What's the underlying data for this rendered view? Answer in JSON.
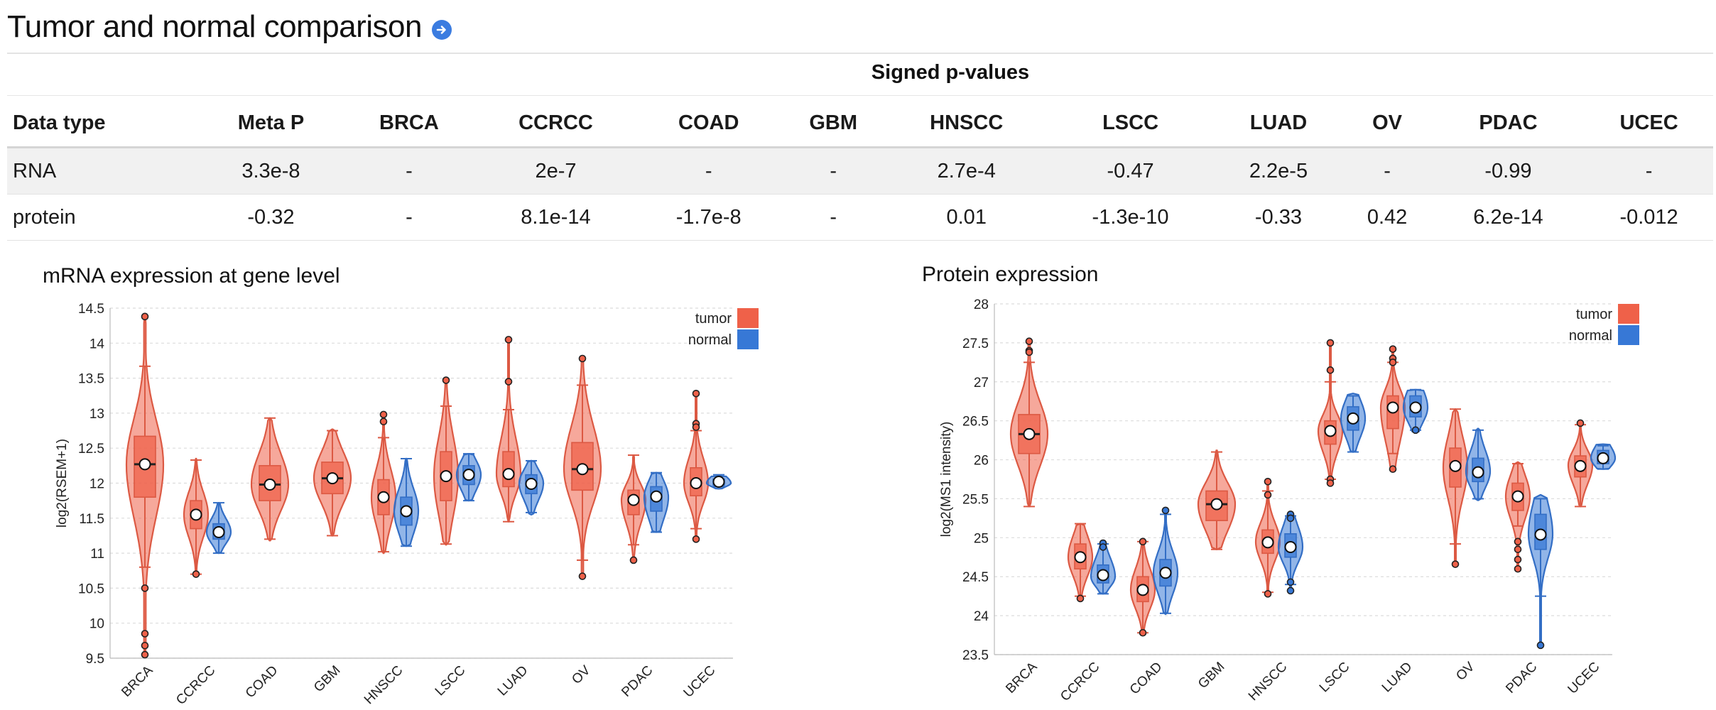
{
  "page": {
    "title": "Tumor and normal comparison",
    "go_icon": "arrow-right-circle-icon"
  },
  "pvalues": {
    "caption": "Signed p-values",
    "headers": [
      "Data type",
      "Meta P",
      "BRCA",
      "CCRCC",
      "COAD",
      "GBM",
      "HNSCC",
      "LSCC",
      "LUAD",
      "OV",
      "PDAC",
      "UCEC"
    ],
    "rows": [
      [
        "RNA",
        "3.3e-8",
        "-",
        "2e-7",
        "-",
        "-",
        "2.7e-4",
        "-0.47",
        "2.2e-5",
        "-",
        "-0.99",
        "-"
      ],
      [
        "protein",
        "-0.32",
        "-",
        "8.1e-14",
        "-1.7e-8",
        "-",
        "0.01",
        "-1.3e-10",
        "-0.33",
        "0.42",
        "6.2e-14",
        "-0.012"
      ]
    ]
  },
  "colors": {
    "tumor": "#ef6149",
    "normal": "#3778d6"
  },
  "chart_data": [
    {
      "type": "violin",
      "title": "mRNA expression at gene level",
      "xlabel": "",
      "ylabel": "log2(RSEM+1)",
      "ylim": [
        9.5,
        14.5
      ],
      "yticks": [
        9.5,
        10,
        10.5,
        11,
        11.5,
        12,
        12.5,
        13,
        13.5,
        14,
        14.5
      ],
      "grid": true,
      "legend_position": "top-right",
      "legend": [
        "tumor",
        "normal"
      ],
      "categories": [
        "BRCA",
        "CCRCC",
        "COAD",
        "GBM",
        "HNSCC",
        "LSCC",
        "LUAD",
        "OV",
        "PDAC",
        "UCEC"
      ],
      "series": [
        {
          "name": "tumor",
          "groups": [
            {
              "category": "BRCA",
              "min": 10.8,
              "q1": 11.8,
              "median": 12.27,
              "q3": 12.67,
              "max": 13.67,
              "mean": 12.27,
              "vmin": 9.55,
              "vmax": 14.38,
              "outliers": [
                14.38,
                10.5,
                9.85,
                9.68,
                9.55
              ]
            },
            {
              "category": "CCRCC",
              "min": 10.7,
              "q1": 11.35,
              "median": 11.55,
              "q3": 11.75,
              "max": 12.33,
              "mean": 11.55,
              "vmin": 10.7,
              "vmax": 12.35,
              "outliers": [
                10.7
              ]
            },
            {
              "category": "COAD",
              "min": 11.2,
              "q1": 11.75,
              "median": 11.98,
              "q3": 12.25,
              "max": 12.93,
              "mean": 11.98,
              "vmin": 11.18,
              "vmax": 12.93,
              "outliers": []
            },
            {
              "category": "GBM",
              "min": 11.25,
              "q1": 11.85,
              "median": 12.07,
              "q3": 12.3,
              "max": 12.75,
              "mean": 12.07,
              "vmin": 11.25,
              "vmax": 12.77,
              "outliers": []
            },
            {
              "category": "HNSCC",
              "min": 11.02,
              "q1": 11.55,
              "median": 11.8,
              "q3": 12.05,
              "max": 12.65,
              "mean": 11.8,
              "vmin": 11.0,
              "vmax": 13.0,
              "outliers": [
                12.98,
                12.88
              ]
            },
            {
              "category": "LSCC",
              "min": 11.13,
              "q1": 11.75,
              "median": 12.1,
              "q3": 12.45,
              "max": 13.1,
              "mean": 12.1,
              "vmin": 11.12,
              "vmax": 13.47,
              "outliers": [
                13.47
              ]
            },
            {
              "category": "LUAD",
              "min": 11.45,
              "q1": 11.95,
              "median": 12.13,
              "q3": 12.45,
              "max": 13.05,
              "mean": 12.13,
              "vmin": 11.45,
              "vmax": 14.05,
              "outliers": [
                14.05,
                13.45
              ]
            },
            {
              "category": "OV",
              "min": 10.9,
              "q1": 11.9,
              "median": 12.2,
              "q3": 12.58,
              "max": 13.4,
              "mean": 12.2,
              "vmin": 10.67,
              "vmax": 13.8,
              "outliers": [
                13.78,
                10.67
              ]
            },
            {
              "category": "PDAC",
              "min": 11.12,
              "q1": 11.55,
              "median": 11.76,
              "q3": 11.9,
              "max": 12.4,
              "mean": 11.76,
              "vmin": 10.9,
              "vmax": 12.4,
              "outliers": [
                10.9
              ]
            },
            {
              "category": "UCEC",
              "min": 11.35,
              "q1": 11.82,
              "median": 12.0,
              "q3": 12.22,
              "max": 12.75,
              "mean": 12.0,
              "vmin": 11.18,
              "vmax": 13.3,
              "outliers": [
                13.28,
                12.85,
                12.8,
                11.2
              ]
            }
          ]
        },
        {
          "name": "normal",
          "groups": [
            {
              "category": "CCRCC",
              "min": 11.0,
              "q1": 11.2,
              "median": 11.3,
              "q3": 11.42,
              "max": 11.72,
              "mean": 11.3,
              "vmin": 11.0,
              "vmax": 11.72,
              "outliers": []
            },
            {
              "category": "HNSCC",
              "min": 11.1,
              "q1": 11.4,
              "median": 11.6,
              "q3": 11.8,
              "max": 12.35,
              "mean": 11.6,
              "vmin": 11.1,
              "vmax": 12.35,
              "outliers": []
            },
            {
              "category": "LSCC",
              "min": 11.75,
              "q1": 11.98,
              "median": 12.12,
              "q3": 12.25,
              "max": 12.42,
              "mean": 12.12,
              "vmin": 11.75,
              "vmax": 12.42,
              "outliers": []
            },
            {
              "category": "LUAD",
              "min": 11.58,
              "q1": 11.85,
              "median": 12.0,
              "q3": 12.12,
              "max": 12.32,
              "mean": 11.99,
              "vmin": 11.55,
              "vmax": 12.32,
              "outliers": []
            },
            {
              "category": "PDAC",
              "min": 11.3,
              "q1": 11.6,
              "median": 11.8,
              "q3": 11.95,
              "max": 12.15,
              "mean": 11.81,
              "vmin": 11.3,
              "vmax": 12.15,
              "outliers": []
            },
            {
              "category": "UCEC",
              "min": 11.95,
              "q1": 11.97,
              "median": 12.0,
              "q3": 12.06,
              "max": 12.12,
              "mean": 12.02,
              "vmin": 11.92,
              "vmax": 12.1,
              "outliers": []
            }
          ]
        }
      ]
    },
    {
      "type": "violin",
      "title": "Protein expression",
      "xlabel": "",
      "ylabel": "log2(MS1 intensity)",
      "ylim": [
        23.5,
        28
      ],
      "yticks": [
        23.5,
        24,
        24.5,
        25,
        25.5,
        26,
        26.5,
        27,
        27.5,
        28
      ],
      "grid": true,
      "legend_position": "top-right",
      "legend": [
        "tumor",
        "normal"
      ],
      "categories": [
        "BRCA",
        "CCRCC",
        "COAD",
        "GBM",
        "HNSCC",
        "LSCC",
        "LUAD",
        "OV",
        "PDAC",
        "UCEC"
      ],
      "series": [
        {
          "name": "tumor",
          "groups": [
            {
              "category": "BRCA",
              "min": 25.4,
              "q1": 26.08,
              "median": 26.33,
              "q3": 26.58,
              "max": 27.25,
              "mean": 26.33,
              "vmin": 25.4,
              "vmax": 27.52,
              "outliers": [
                27.52,
                27.4,
                27.38
              ]
            },
            {
              "category": "CCRCC",
              "min": 24.25,
              "q1": 24.6,
              "median": 24.75,
              "q3": 24.92,
              "max": 25.18,
              "mean": 24.75,
              "vmin": 24.22,
              "vmax": 25.18,
              "outliers": [
                24.22
              ]
            },
            {
              "category": "COAD",
              "min": 23.78,
              "q1": 24.18,
              "median": 24.33,
              "q3": 24.5,
              "max": 24.95,
              "mean": 24.33,
              "vmin": 23.76,
              "vmax": 24.95,
              "outliers": [
                24.95,
                23.78
              ]
            },
            {
              "category": "GBM",
              "min": 24.85,
              "q1": 25.22,
              "median": 25.43,
              "q3": 25.6,
              "max": 26.1,
              "mean": 25.43,
              "vmin": 24.85,
              "vmax": 26.12,
              "outliers": []
            },
            {
              "category": "HNSCC",
              "min": 24.3,
              "q1": 24.8,
              "median": 24.95,
              "q3": 25.1,
              "max": 25.6,
              "mean": 24.94,
              "vmin": 24.28,
              "vmax": 25.72,
              "outliers": [
                25.72,
                25.55,
                24.28
              ]
            },
            {
              "category": "LSCC",
              "min": 25.75,
              "q1": 26.2,
              "median": 26.37,
              "q3": 26.5,
              "max": 27.0,
              "mean": 26.37,
              "vmin": 25.68,
              "vmax": 27.5,
              "outliers": [
                27.5,
                27.15,
                25.75,
                25.7
              ]
            },
            {
              "category": "LUAD",
              "min": 26.08,
              "q1": 26.4,
              "median": 26.67,
              "q3": 26.82,
              "max": 27.25,
              "mean": 26.67,
              "vmin": 25.88,
              "vmax": 27.45,
              "outliers": [
                27.42,
                27.3,
                27.25,
                25.88
              ]
            },
            {
              "category": "OV",
              "min": 24.92,
              "q1": 25.65,
              "median": 25.9,
              "q3": 26.15,
              "max": 26.65,
              "mean": 25.92,
              "vmin": 24.66,
              "vmax": 26.65,
              "outliers": [
                24.66
              ]
            },
            {
              "category": "PDAC",
              "min": 25.15,
              "q1": 25.35,
              "median": 25.53,
              "q3": 25.7,
              "max": 25.95,
              "mean": 25.53,
              "vmin": 24.6,
              "vmax": 25.97,
              "outliers": [
                24.95,
                24.85,
                24.72,
                24.6
              ]
            },
            {
              "category": "UCEC",
              "min": 25.4,
              "q1": 25.78,
              "median": 25.93,
              "q3": 26.05,
              "max": 26.45,
              "mean": 25.92,
              "vmin": 25.4,
              "vmax": 26.48,
              "outliers": [
                26.47
              ]
            }
          ]
        },
        {
          "name": "normal",
          "groups": [
            {
              "category": "CCRCC",
              "min": 24.28,
              "q1": 24.42,
              "median": 24.5,
              "q3": 24.65,
              "max": 24.92,
              "mean": 24.52,
              "vmin": 24.28,
              "vmax": 24.95,
              "outliers": [
                24.93,
                24.88
              ]
            },
            {
              "category": "COAD",
              "min": 24.03,
              "q1": 24.38,
              "median": 24.55,
              "q3": 24.72,
              "max": 25.3,
              "mean": 24.55,
              "vmin": 24.02,
              "vmax": 25.35,
              "outliers": [
                25.35
              ]
            },
            {
              "category": "HNSCC",
              "min": 24.4,
              "q1": 24.75,
              "median": 24.88,
              "q3": 25.05,
              "max": 25.28,
              "mean": 24.88,
              "vmin": 24.3,
              "vmax": 25.3,
              "outliers": [
                25.3,
                25.25,
                24.43,
                24.32
              ]
            },
            {
              "category": "LSCC",
              "min": 26.1,
              "q1": 26.38,
              "median": 26.53,
              "q3": 26.68,
              "max": 26.82,
              "mean": 26.53,
              "vmin": 26.1,
              "vmax": 26.85,
              "outliers": []
            },
            {
              "category": "LUAD",
              "min": 26.38,
              "q1": 26.55,
              "median": 26.67,
              "q3": 26.82,
              "max": 26.9,
              "mean": 26.67,
              "vmin": 26.35,
              "vmax": 26.9,
              "outliers": [
                26.38
              ]
            },
            {
              "category": "OV",
              "min": 25.5,
              "q1": 25.72,
              "median": 25.85,
              "q3": 26.02,
              "max": 26.38,
              "mean": 25.84,
              "vmin": 25.48,
              "vmax": 26.4,
              "outliers": []
            },
            {
              "category": "PDAC",
              "min": 24.25,
              "q1": 24.85,
              "median": 25.05,
              "q3": 25.3,
              "max": 25.5,
              "mean": 25.04,
              "vmin": 23.62,
              "vmax": 25.55,
              "outliers": [
                23.62
              ]
            },
            {
              "category": "UCEC",
              "min": 25.88,
              "q1": 25.95,
              "median": 26.02,
              "q3": 26.12,
              "max": 26.18,
              "mean": 26.02,
              "vmin": 25.88,
              "vmax": 26.2,
              "outliers": []
            }
          ]
        }
      ]
    }
  ]
}
